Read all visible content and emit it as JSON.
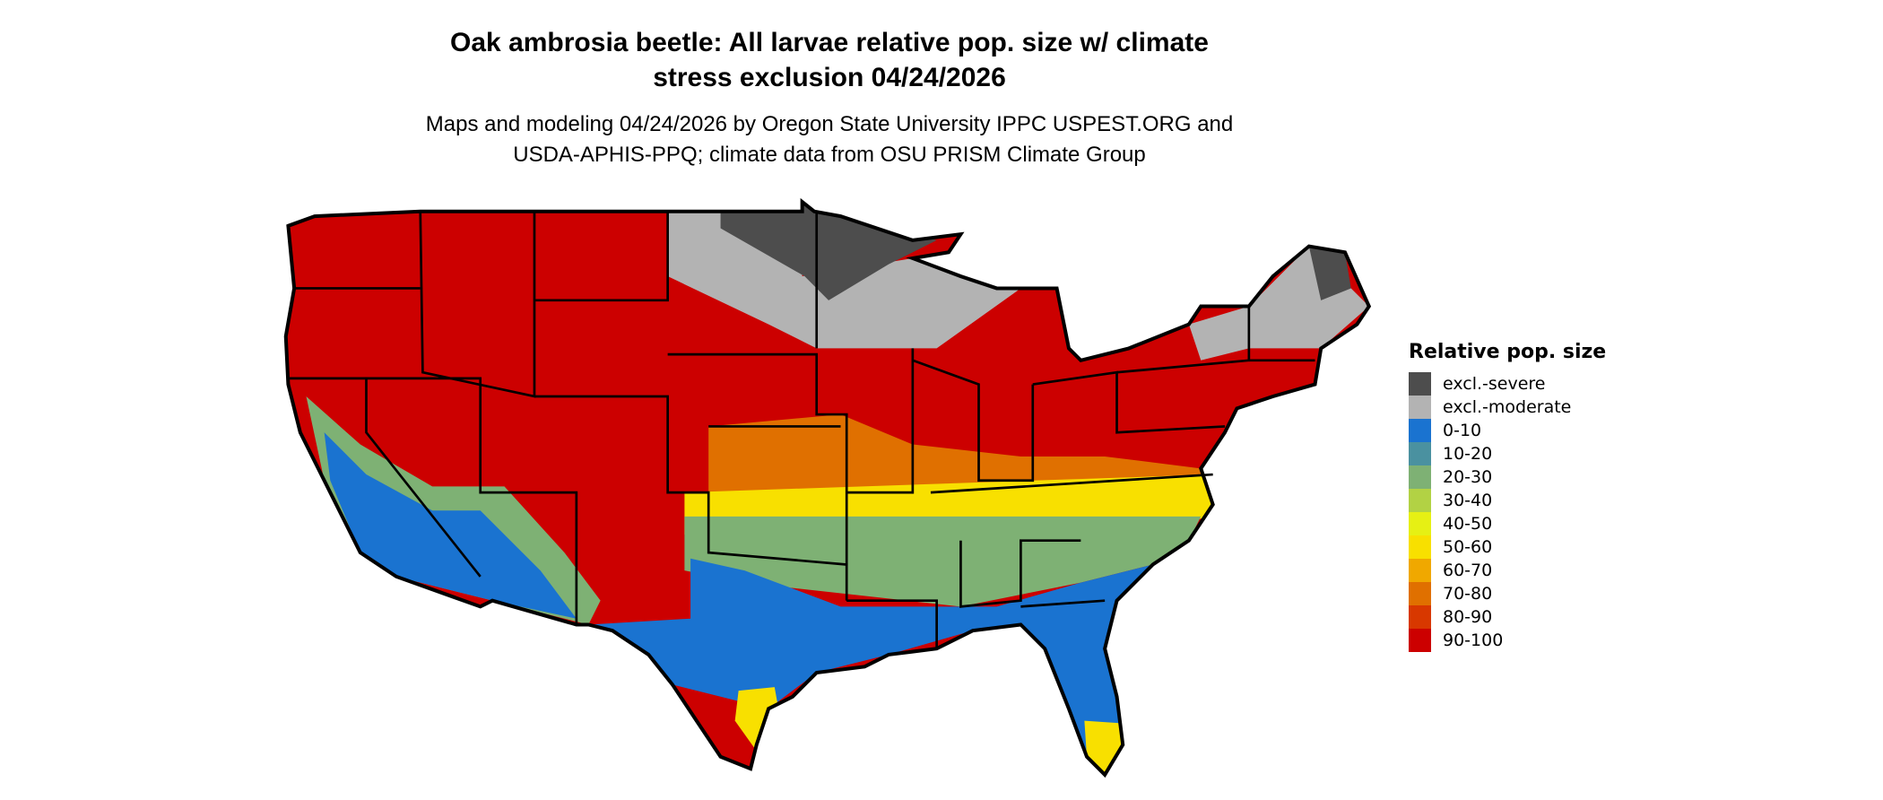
{
  "title": [
    "Oak ambrosia beetle: All larvae relative pop. size w/ climate",
    "stress exclusion 04/24/2026"
  ],
  "subtitle": [
    "Maps and modeling 04/24/2026 by Oregon State University IPPC USPEST.ORG and",
    "USDA-APHIS-PPQ; climate data from OSU PRISM Climate Group"
  ],
  "legend": {
    "title": "Relative pop. size",
    "items": [
      {
        "label": "excl.-severe",
        "color": "#4d4d4d"
      },
      {
        "label": "excl.-moderate",
        "color": "#b3b3b3"
      },
      {
        "label": "0-10",
        "color": "#1a73d0"
      },
      {
        "label": "10-20",
        "color": "#4a91a0"
      },
      {
        "label": "20-30",
        "color": "#7eb174"
      },
      {
        "label": "30-40",
        "color": "#b2d244"
      },
      {
        "label": "40-50",
        "color": "#e6f014"
      },
      {
        "label": "50-60",
        "color": "#f8e000"
      },
      {
        "label": "60-70",
        "color": "#f0a800"
      },
      {
        "label": "70-80",
        "color": "#e07000"
      },
      {
        "label": "80-90",
        "color": "#d83800"
      },
      {
        "label": "90-100",
        "color": "#cc0000"
      }
    ]
  }
}
